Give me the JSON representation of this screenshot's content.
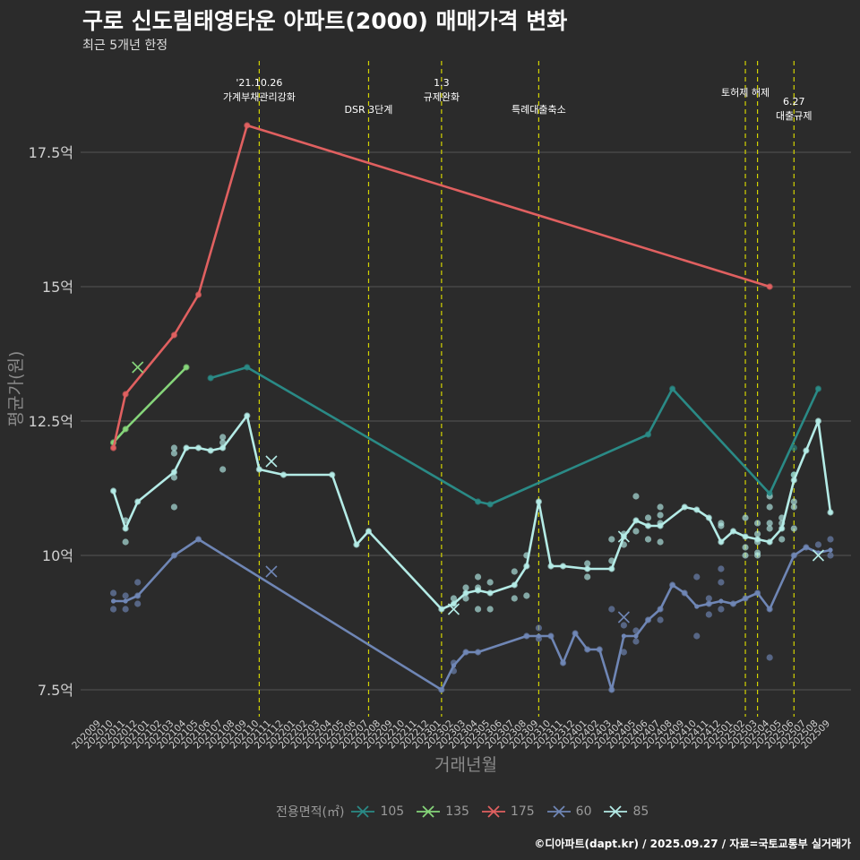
{
  "title": "구로 신도림태영타운 아파트(2000) 매매가격 변화",
  "subtitle": "최근 5개년 한정",
  "caption": "©디아파트(dapt.kr) / 2025.09.27 / 자료=국토교통부 실거래가",
  "colors": {
    "background": "#2b2b2b",
    "grid": "#555555",
    "event_line": "#d4d400",
    "axis_text": "#d0d0d0"
  },
  "legend": {
    "title": "전용면적(㎡)",
    "items": [
      {
        "label": "105",
        "color": "#2a8a86"
      },
      {
        "label": "135",
        "color": "#86d57a"
      },
      {
        "label": "175",
        "color": "#e06060"
      },
      {
        "label": "60",
        "color": "#6f86b5"
      },
      {
        "label": "85",
        "color": "#b4ebe6"
      }
    ]
  },
  "chart_data": {
    "type": "line",
    "xlabel": "거래년월",
    "ylabel": "평균가(원)",
    "ylim": [
      7.0,
      19.2
    ],
    "y_ticks": [
      {
        "value": 7.5,
        "label": "7.5억"
      },
      {
        "value": 10,
        "label": "10억"
      },
      {
        "value": 12.5,
        "label": "12.5억"
      },
      {
        "value": 15,
        "label": "15억"
      },
      {
        "value": 17.5,
        "label": "17.5억"
      }
    ],
    "x_range": [
      "202009",
      "202509"
    ],
    "x_ticks": [
      "202009",
      "202010",
      "202011",
      "202012",
      "202101",
      "202102",
      "202103",
      "202104",
      "202105",
      "202106",
      "202107",
      "202108",
      "202109",
      "202110",
      "202111",
      "202112",
      "202201",
      "202202",
      "202203",
      "202204",
      "202205",
      "202206",
      "202207",
      "202208",
      "202209",
      "202210",
      "202211",
      "202212",
      "202301",
      "202302",
      "202303",
      "202304",
      "202305",
      "202306",
      "202307",
      "202308",
      "202309",
      "202310",
      "202311",
      "202312",
      "202401",
      "202402",
      "202403",
      "202404",
      "202405",
      "202406",
      "202407",
      "202408",
      "202409",
      "202410",
      "202411",
      "202412",
      "202501",
      "202502",
      "202503",
      "202504",
      "202505",
      "202506",
      "202507",
      "202508",
      "202509"
    ],
    "events": [
      {
        "x": "202110",
        "lines": [
          "'21.10.26",
          "가계부채관리강화"
        ],
        "row": 0
      },
      {
        "x": "202207",
        "lines": [
          "DSR 3단계"
        ],
        "row": 2
      },
      {
        "x": "202301",
        "lines": [
          "1.3",
          "규제완화"
        ],
        "row": 0
      },
      {
        "x": "202309",
        "lines": [
          "특례대출축소"
        ],
        "row": 2
      },
      {
        "x": "202502",
        "lines": [
          "토허제 해제"
        ],
        "row": 1
      },
      {
        "x": "202503",
        "lines": [],
        "row": 1
      },
      {
        "x": "202506",
        "lines": [
          "6.27",
          "대출규제"
        ],
        "row": 3
      }
    ],
    "series": [
      {
        "name": "105",
        "color": "#2a8a86",
        "x": [
          "202106",
          "202109",
          "202304",
          "202305",
          "202406",
          "202408",
          "202504",
          "202508"
        ],
        "y": [
          13.3,
          13.5,
          11.0,
          10.95,
          12.25,
          13.1,
          11.15,
          13.1
        ],
        "points": [
          [
            "202106",
            13.3
          ],
          [
            "202109",
            13.5
          ],
          [
            "202304",
            11.0
          ],
          [
            "202305",
            10.95
          ],
          [
            "202406",
            12.25
          ],
          [
            "202408",
            13.1
          ],
          [
            "202504",
            11.15
          ],
          [
            "202506",
            11.5
          ],
          [
            "202506",
            12.0
          ],
          [
            "202508",
            13.1
          ]
        ],
        "cancelled": []
      },
      {
        "name": "135",
        "color": "#86d57a",
        "x": [
          "202010",
          "202011",
          "202104"
        ],
        "y": [
          12.1,
          12.35,
          13.5
        ],
        "points": [
          [
            "202010",
            12.1
          ],
          [
            "202011",
            12.35
          ],
          [
            "202104",
            13.5
          ]
        ],
        "cancelled": [
          [
            "202012",
            13.5
          ]
        ]
      },
      {
        "name": "175",
        "color": "#e06060",
        "x": [
          "202010",
          "202011",
          "202103",
          "202105",
          "202109",
          "202504"
        ],
        "y": [
          12.0,
          13.0,
          14.1,
          14.85,
          18.0,
          15.0
        ],
        "points": [
          [
            "202010",
            12.0
          ],
          [
            "202011",
            13.0
          ],
          [
            "202103",
            14.1
          ],
          [
            "202105",
            14.85
          ],
          [
            "202109",
            18.0
          ],
          [
            "202504",
            15.0
          ]
        ],
        "cancelled": []
      },
      {
        "name": "60",
        "color": "#6f86b5",
        "x": [
          "202010",
          "202011",
          "202012",
          "202103",
          "202105",
          "202301",
          "202302",
          "202303",
          "202304",
          "202308",
          "202309",
          "202310",
          "202311",
          "202312",
          "202401",
          "202402",
          "202403",
          "202404",
          "202405",
          "202406",
          "202407",
          "202408",
          "202409",
          "202410",
          "202411",
          "202412",
          "202501",
          "202502",
          "202503",
          "202504",
          "202506",
          "202507",
          "202508",
          "202509"
        ],
        "y": [
          9.15,
          9.15,
          9.25,
          10.0,
          10.3,
          7.5,
          7.95,
          8.2,
          8.2,
          8.5,
          8.5,
          8.5,
          8.0,
          8.55,
          8.25,
          8.25,
          7.5,
          8.5,
          8.5,
          8.8,
          9.0,
          9.45,
          9.3,
          9.05,
          9.1,
          9.15,
          9.1,
          9.2,
          9.3,
          9.0,
          10.0,
          10.15,
          10.05,
          10.1
        ],
        "points": [
          [
            "202010",
            9.0
          ],
          [
            "202010",
            9.3
          ],
          [
            "202011",
            9.0
          ],
          [
            "202011",
            9.25
          ],
          [
            "202012",
            9.1
          ],
          [
            "202012",
            9.5
          ],
          [
            "202012",
            9.25
          ],
          [
            "202103",
            10.0
          ],
          [
            "202105",
            10.3
          ],
          [
            "202301",
            7.5
          ],
          [
            "202302",
            7.85
          ],
          [
            "202302",
            8.0
          ],
          [
            "202303",
            8.2
          ],
          [
            "202304",
            8.2
          ],
          [
            "202308",
            8.5
          ],
          [
            "202309",
            8.45
          ],
          [
            "202309",
            8.65
          ],
          [
            "202310",
            8.5
          ],
          [
            "202311",
            8.0
          ],
          [
            "202312",
            8.55
          ],
          [
            "202401",
            8.25
          ],
          [
            "202402",
            8.25
          ],
          [
            "202403",
            7.5
          ],
          [
            "202403",
            9.0
          ],
          [
            "202404",
            8.2
          ],
          [
            "202404",
            8.7
          ],
          [
            "202405",
            8.4
          ],
          [
            "202405",
            8.6
          ],
          [
            "202406",
            8.8
          ],
          [
            "202407",
            9.0
          ],
          [
            "202407",
            8.8
          ],
          [
            "202408",
            9.45
          ],
          [
            "202409",
            9.3
          ],
          [
            "202410",
            9.6
          ],
          [
            "202410",
            8.5
          ],
          [
            "202411",
            9.1
          ],
          [
            "202411",
            8.9
          ],
          [
            "202411",
            9.2
          ],
          [
            "202412",
            9.0
          ],
          [
            "202412",
            9.5
          ],
          [
            "202412",
            9.75
          ],
          [
            "202501",
            9.1
          ],
          [
            "202502",
            9.2
          ],
          [
            "202503",
            9.3
          ],
          [
            "202504",
            9.0
          ],
          [
            "202504",
            8.1
          ],
          [
            "202506",
            10.0
          ],
          [
            "202507",
            10.15
          ],
          [
            "202508",
            10.2
          ],
          [
            "202509",
            10.0
          ],
          [
            "202509",
            10.3
          ]
        ],
        "cancelled": [
          [
            "202111",
            9.7
          ],
          [
            "202404",
            8.85
          ]
        ]
      },
      {
        "name": "85",
        "color": "#b4ebe6",
        "x": [
          "202010",
          "202011",
          "202012",
          "202103",
          "202104",
          "202105",
          "202106",
          "202107",
          "202109",
          "202110",
          "202112",
          "202204",
          "202206",
          "202207",
          "202301",
          "202302",
          "202303",
          "202304",
          "202305",
          "202307",
          "202308",
          "202309",
          "202310",
          "202311",
          "202401",
          "202403",
          "202404",
          "202405",
          "202406",
          "202407",
          "202409",
          "202410",
          "202411",
          "202412",
          "202501",
          "202502",
          "202503",
          "202504",
          "202505",
          "202506",
          "202507",
          "202508",
          "202509"
        ],
        "y": [
          11.2,
          10.5,
          11.0,
          11.55,
          12.0,
          12.0,
          11.95,
          12.0,
          12.6,
          11.6,
          11.5,
          11.5,
          10.2,
          10.45,
          9.0,
          9.1,
          9.3,
          9.35,
          9.3,
          9.45,
          9.8,
          11.0,
          9.8,
          9.8,
          9.75,
          9.75,
          10.35,
          10.65,
          10.55,
          10.55,
          10.9,
          10.85,
          10.7,
          10.25,
          10.45,
          10.35,
          10.3,
          10.25,
          10.5,
          11.4,
          11.95,
          12.5,
          10.8
        ],
        "points": [
          [
            "202010",
            11.2
          ],
          [
            "202011",
            10.5
          ],
          [
            "202011",
            10.65
          ],
          [
            "202011",
            10.25
          ],
          [
            "202012",
            11.0
          ],
          [
            "202103",
            11.55
          ],
          [
            "202103",
            10.9
          ],
          [
            "202103",
            11.45
          ],
          [
            "202103",
            11.9
          ],
          [
            "202103",
            12.0
          ],
          [
            "202104",
            12.0
          ],
          [
            "202105",
            12.0
          ],
          [
            "202106",
            11.95
          ],
          [
            "202107",
            12.0
          ],
          [
            "202107",
            12.2
          ],
          [
            "202107",
            12.1
          ],
          [
            "202107",
            11.6
          ],
          [
            "202109",
            12.6
          ],
          [
            "202110",
            11.6
          ],
          [
            "202112",
            11.5
          ],
          [
            "202204",
            11.5
          ],
          [
            "202206",
            10.2
          ],
          [
            "202207",
            10.45
          ],
          [
            "202301",
            9.0
          ],
          [
            "202302",
            9.1
          ],
          [
            "202302",
            9.2
          ],
          [
            "202303",
            9.3
          ],
          [
            "202303",
            9.2
          ],
          [
            "202303",
            9.4
          ],
          [
            "202304",
            9.35
          ],
          [
            "202304",
            9.0
          ],
          [
            "202304",
            9.6
          ],
          [
            "202304",
            9.4
          ],
          [
            "202305",
            9.3
          ],
          [
            "202305",
            9.0
          ],
          [
            "202305",
            9.5
          ],
          [
            "202307",
            9.45
          ],
          [
            "202307",
            9.2
          ],
          [
            "202307",
            9.7
          ],
          [
            "202308",
            9.8
          ],
          [
            "202308",
            10.0
          ],
          [
            "202308",
            9.25
          ],
          [
            "202309",
            11.0
          ],
          [
            "202310",
            9.8
          ],
          [
            "202311",
            9.8
          ],
          [
            "202401",
            9.75
          ],
          [
            "202401",
            9.6
          ],
          [
            "202401",
            9.85
          ],
          [
            "202403",
            9.75
          ],
          [
            "202403",
            9.9
          ],
          [
            "202403",
            10.3
          ],
          [
            "202404",
            10.35
          ],
          [
            "202404",
            10.4
          ],
          [
            "202404",
            10.2
          ],
          [
            "202405",
            10.65
          ],
          [
            "202405",
            10.45
          ],
          [
            "202405",
            11.1
          ],
          [
            "202406",
            10.55
          ],
          [
            "202406",
            10.7
          ],
          [
            "202406",
            10.3
          ],
          [
            "202407",
            10.55
          ],
          [
            "202407",
            10.9
          ],
          [
            "202407",
            10.75
          ],
          [
            "202407",
            10.6
          ],
          [
            "202407",
            10.25
          ],
          [
            "202409",
            10.9
          ],
          [
            "202410",
            10.85
          ],
          [
            "202411",
            10.7
          ],
          [
            "202412",
            10.25
          ],
          [
            "202412",
            10.55
          ],
          [
            "202412",
            10.6
          ],
          [
            "202501",
            10.45
          ],
          [
            "202502",
            10.35
          ],
          [
            "202502",
            10.0
          ],
          [
            "202502",
            10.15
          ],
          [
            "202502",
            10.7
          ],
          [
            "202503",
            10.3
          ],
          [
            "202503",
            10.05
          ],
          [
            "202503",
            10.0
          ],
          [
            "202503",
            10.25
          ],
          [
            "202503",
            10.4
          ],
          [
            "202503",
            10.6
          ],
          [
            "202504",
            10.25
          ],
          [
            "202504",
            10.5
          ],
          [
            "202504",
            10.6
          ],
          [
            "202504",
            10.9
          ],
          [
            "202504",
            11.1
          ],
          [
            "202505",
            10.5
          ],
          [
            "202505",
            10.3
          ],
          [
            "202505",
            10.7
          ],
          [
            "202505",
            10.6
          ],
          [
            "202506",
            11.4
          ],
          [
            "202506",
            11.5
          ],
          [
            "202506",
            10.5
          ],
          [
            "202506",
            10.9
          ],
          [
            "202506",
            11.0
          ],
          [
            "202507",
            11.95
          ],
          [
            "202508",
            12.5
          ],
          [
            "202509",
            10.8
          ]
        ],
        "cancelled": [
          [
            "202111",
            11.75
          ],
          [
            "202302",
            9.0
          ],
          [
            "202404",
            10.35
          ],
          [
            "202508",
            10.0
          ]
        ]
      }
    ]
  }
}
